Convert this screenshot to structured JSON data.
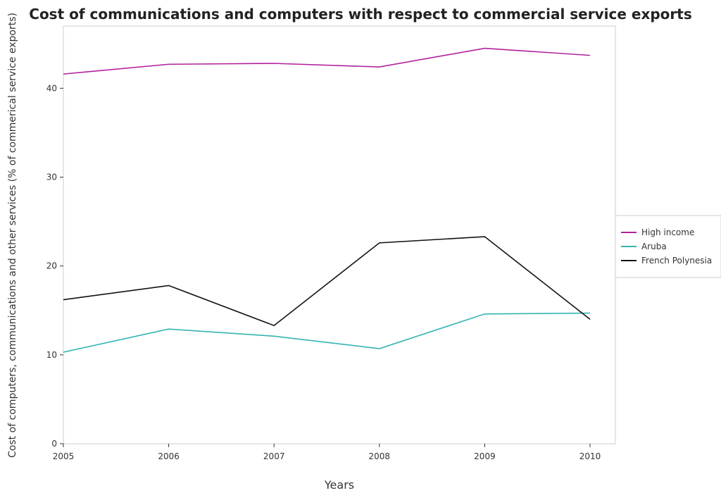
{
  "chart_data": {
    "type": "line",
    "title": "Cost of communications and computers with respect to commercial service exports",
    "xlabel": "Years",
    "ylabel": "Cost of computers, communications and other services (% of commerical service exports)",
    "x": [
      "2005",
      "2006",
      "2007",
      "2008",
      "2009",
      "2010"
    ],
    "yticks": [
      "0",
      "10",
      "20",
      "30",
      "40"
    ],
    "ylim": [
      0,
      47
    ],
    "legend_position": "right",
    "grid": false,
    "series": [
      {
        "name": "High income",
        "color": "#b2219e",
        "values": [
          41.6,
          42.7,
          42.8,
          42.4,
          44.5,
          43.7
        ]
      },
      {
        "name": "Aruba",
        "color": "#35b4b4",
        "values": [
          10.3,
          12.9,
          12.1,
          10.7,
          14.6,
          14.7
        ]
      },
      {
        "name": "French Polynesia",
        "color": "#111111",
        "values": [
          16.2,
          17.8,
          13.3,
          22.6,
          23.3,
          14.0
        ]
      }
    ]
  }
}
